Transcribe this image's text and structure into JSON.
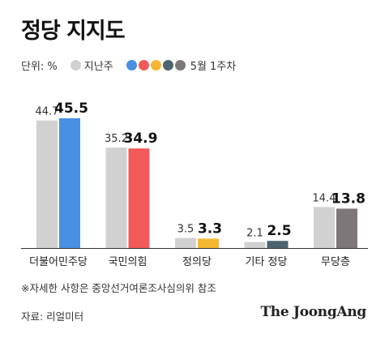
{
  "title": "정당 지지도",
  "unit_label": "단위: %",
  "legend": {
    "prev_label": "지난주",
    "prev_color": "#d1d1d1",
    "current_label": "5월 1주차",
    "current_colors": [
      "#4a90e2",
      "#f25a5a",
      "#f5b731",
      "#4d6470",
      "#7d7779"
    ]
  },
  "chart_data": {
    "type": "bar",
    "categories": [
      "더불어민주당",
      "국민의힘",
      "정의당",
      "기타 정당",
      "무당층"
    ],
    "series": [
      {
        "name": "지난주",
        "values": [
          44.7,
          35.2,
          3.5,
          2.1,
          14.4
        ],
        "color": "#d1d1d1"
      },
      {
        "name": "5월 1주차",
        "values": [
          45.5,
          34.9,
          3.3,
          2.5,
          13.8
        ],
        "colors": [
          "#4a90e2",
          "#f25a5a",
          "#f5b731",
          "#4d6470",
          "#7d7779"
        ]
      }
    ],
    "ylim": [
      0,
      50
    ]
  },
  "footnote": "※자세한 사항은 중앙선거여론조사심의위 참조",
  "source": "자료: 리얼미터",
  "brand": "The JoongAng"
}
